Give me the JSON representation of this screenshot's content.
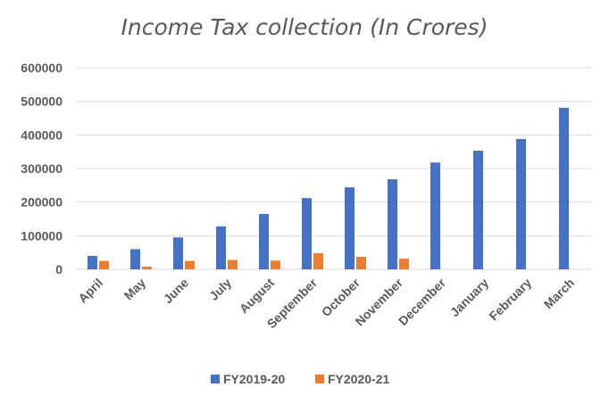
{
  "chart_data": {
    "type": "bar",
    "title": "Income Tax collection (In Crores)",
    "categories": [
      "April",
      "May",
      "June",
      "July",
      "August",
      "September",
      "October",
      "November",
      "December",
      "January",
      "February",
      "March"
    ],
    "series": [
      {
        "name": "FY2019-20",
        "color": "#4472C4",
        "values": [
          40000,
          60000,
          95000,
          128000,
          165000,
          212000,
          244000,
          268000,
          318000,
          353000,
          388000,
          481000
        ]
      },
      {
        "name": "FY2020-21",
        "color": "#ED7D31",
        "values": [
          25000,
          8000,
          25000,
          28000,
          26000,
          48000,
          37000,
          32000,
          null,
          null,
          null,
          null
        ]
      }
    ],
    "ylim": [
      0,
      600000
    ],
    "yticks": [
      0,
      100000,
      200000,
      300000,
      400000,
      500000,
      600000
    ],
    "grid": true,
    "legend": "bottom"
  }
}
